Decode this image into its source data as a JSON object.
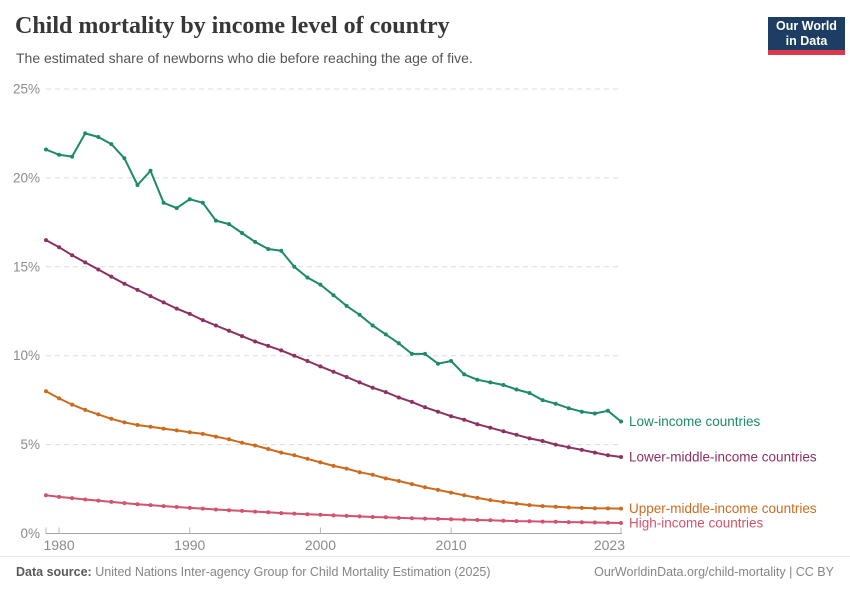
{
  "header": {
    "title": "Child mortality by income level of country",
    "subtitle": "The estimated share of newborns who die before reaching the age of five.",
    "logo": {
      "line1": "Our World",
      "line2": "in Data"
    }
  },
  "footer": {
    "datasource_label": "Data source:",
    "datasource_text": "United Nations Inter-agency Group for Child Mortality Estimation (2025)",
    "credit": "OurWorldinData.org/child-mortality | CC BY"
  },
  "brand_colors": {
    "navy": "#1d3d63",
    "red": "#d93a4b"
  },
  "chart_data": {
    "type": "line",
    "title": "Child mortality by income level of country",
    "subtitle": "The estimated share of newborns who die before reaching the age of five.",
    "xlabel": "",
    "ylabel": "",
    "xlim": [
      1979,
      2023
    ],
    "ylim": [
      0,
      25
    ],
    "xticks": [
      1980,
      1990,
      2000,
      2010,
      2023
    ],
    "yticks": [
      0,
      5,
      10,
      15,
      20,
      25
    ],
    "ytick_format": "{v}%",
    "grid": "horizontal-dashed",
    "legend_position": "line-end-labels-right",
    "axis_text_color": "#8b8b8b",
    "gridline_color": "#dcdcdc",
    "x": [
      1979,
      1980,
      1981,
      1982,
      1983,
      1984,
      1985,
      1986,
      1987,
      1988,
      1989,
      1990,
      1991,
      1992,
      1993,
      1994,
      1995,
      1996,
      1997,
      1998,
      1999,
      2000,
      2001,
      2002,
      2003,
      2004,
      2005,
      2006,
      2007,
      2008,
      2009,
      2010,
      2011,
      2012,
      2013,
      2014,
      2015,
      2016,
      2017,
      2018,
      2019,
      2020,
      2021,
      2022,
      2023
    ],
    "series": [
      {
        "name": "Low-income countries",
        "color": "#1d8a6a",
        "values": [
          21.6,
          21.3,
          21.2,
          22.5,
          22.3,
          21.9,
          21.1,
          19.6,
          20.4,
          18.6,
          18.3,
          18.8,
          18.6,
          17.6,
          17.4,
          16.9,
          16.4,
          16.0,
          15.9,
          15.0,
          14.4,
          14.0,
          13.4,
          12.8,
          12.3,
          11.7,
          11.2,
          10.7,
          10.1,
          10.1,
          9.55,
          9.7,
          8.95,
          8.65,
          8.5,
          8.35,
          8.1,
          7.9,
          7.5,
          7.3,
          7.05,
          6.85,
          6.75,
          6.9,
          6.3
        ]
      },
      {
        "name": "Lower-middle-income countries",
        "color": "#8c3160",
        "values": [
          16.5,
          16.1,
          15.65,
          15.25,
          14.85,
          14.45,
          14.05,
          13.7,
          13.35,
          13.0,
          12.65,
          12.35,
          12.0,
          11.7,
          11.4,
          11.1,
          10.8,
          10.55,
          10.3,
          10.0,
          9.7,
          9.4,
          9.1,
          8.8,
          8.5,
          8.2,
          7.95,
          7.65,
          7.4,
          7.1,
          6.85,
          6.6,
          6.4,
          6.15,
          5.95,
          5.75,
          5.55,
          5.35,
          5.2,
          5.0,
          4.85,
          4.7,
          4.55,
          4.4,
          4.3
        ]
      },
      {
        "name": "Upper-middle-income countries",
        "color": "#cc6b1e",
        "values": [
          8.0,
          7.6,
          7.25,
          6.95,
          6.7,
          6.45,
          6.25,
          6.1,
          6.0,
          5.9,
          5.8,
          5.7,
          5.6,
          5.45,
          5.3,
          5.1,
          4.95,
          4.75,
          4.55,
          4.4,
          4.2,
          4.0,
          3.8,
          3.65,
          3.45,
          3.3,
          3.1,
          2.95,
          2.78,
          2.6,
          2.45,
          2.3,
          2.15,
          2.0,
          1.88,
          1.77,
          1.68,
          1.6,
          1.54,
          1.5,
          1.46,
          1.44,
          1.42,
          1.41,
          1.4
        ]
      },
      {
        "name": "High-income countries",
        "color": "#d2536d",
        "values": [
          2.15,
          2.06,
          1.99,
          1.91,
          1.85,
          1.78,
          1.71,
          1.65,
          1.6,
          1.54,
          1.49,
          1.44,
          1.4,
          1.35,
          1.31,
          1.27,
          1.23,
          1.19,
          1.15,
          1.12,
          1.08,
          1.05,
          1.02,
          0.99,
          0.96,
          0.93,
          0.91,
          0.88,
          0.86,
          0.84,
          0.82,
          0.8,
          0.78,
          0.76,
          0.74,
          0.72,
          0.7,
          0.69,
          0.67,
          0.66,
          0.64,
          0.63,
          0.62,
          0.6,
          0.59
        ]
      }
    ]
  }
}
